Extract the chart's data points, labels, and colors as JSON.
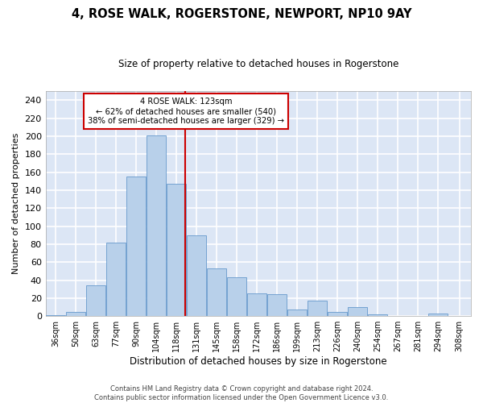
{
  "title": "4, ROSE WALK, ROGERSTONE, NEWPORT, NP10 9AY",
  "subtitle": "Size of property relative to detached houses in Rogerstone",
  "xlabel": "Distribution of detached houses by size in Rogerstone",
  "ylabel": "Number of detached properties",
  "bar_color": "#b8d0ea",
  "bar_edge_color": "#6699cc",
  "background_color": "#dce6f5",
  "grid_color": "#ffffff",
  "vline_x": 123,
  "vline_color": "#cc0000",
  "categories": [
    "36sqm",
    "50sqm",
    "63sqm",
    "77sqm",
    "90sqm",
    "104sqm",
    "118sqm",
    "131sqm",
    "145sqm",
    "158sqm",
    "172sqm",
    "186sqm",
    "199sqm",
    "213sqm",
    "226sqm",
    "240sqm",
    "254sqm",
    "267sqm",
    "281sqm",
    "294sqm",
    "308sqm"
  ],
  "bin_edges": [
    29.5,
    43,
    56.5,
    70,
    83.5,
    97,
    110.5,
    124,
    137.5,
    151,
    164.5,
    178,
    191.5,
    205,
    218.5,
    232,
    245.5,
    259,
    272.5,
    286,
    299.5,
    315
  ],
  "values": [
    1,
    5,
    34,
    82,
    155,
    201,
    147,
    90,
    53,
    43,
    25,
    24,
    7,
    17,
    5,
    10,
    2,
    0,
    0,
    3,
    0
  ],
  "ylim": [
    0,
    250
  ],
  "yticks": [
    0,
    20,
    40,
    60,
    80,
    100,
    120,
    140,
    160,
    180,
    200,
    220,
    240
  ],
  "annotation_title": "4 ROSE WALK: 123sqm",
  "annotation_line1": "← 62% of detached houses are smaller (540)",
  "annotation_line2": "38% of semi-detached houses are larger (329) →",
  "annotation_box_color": "#ffffff",
  "annotation_box_edge": "#cc0000",
  "footer1": "Contains HM Land Registry data © Crown copyright and database right 2024.",
  "footer2": "Contains public sector information licensed under the Open Government Licence v3.0."
}
